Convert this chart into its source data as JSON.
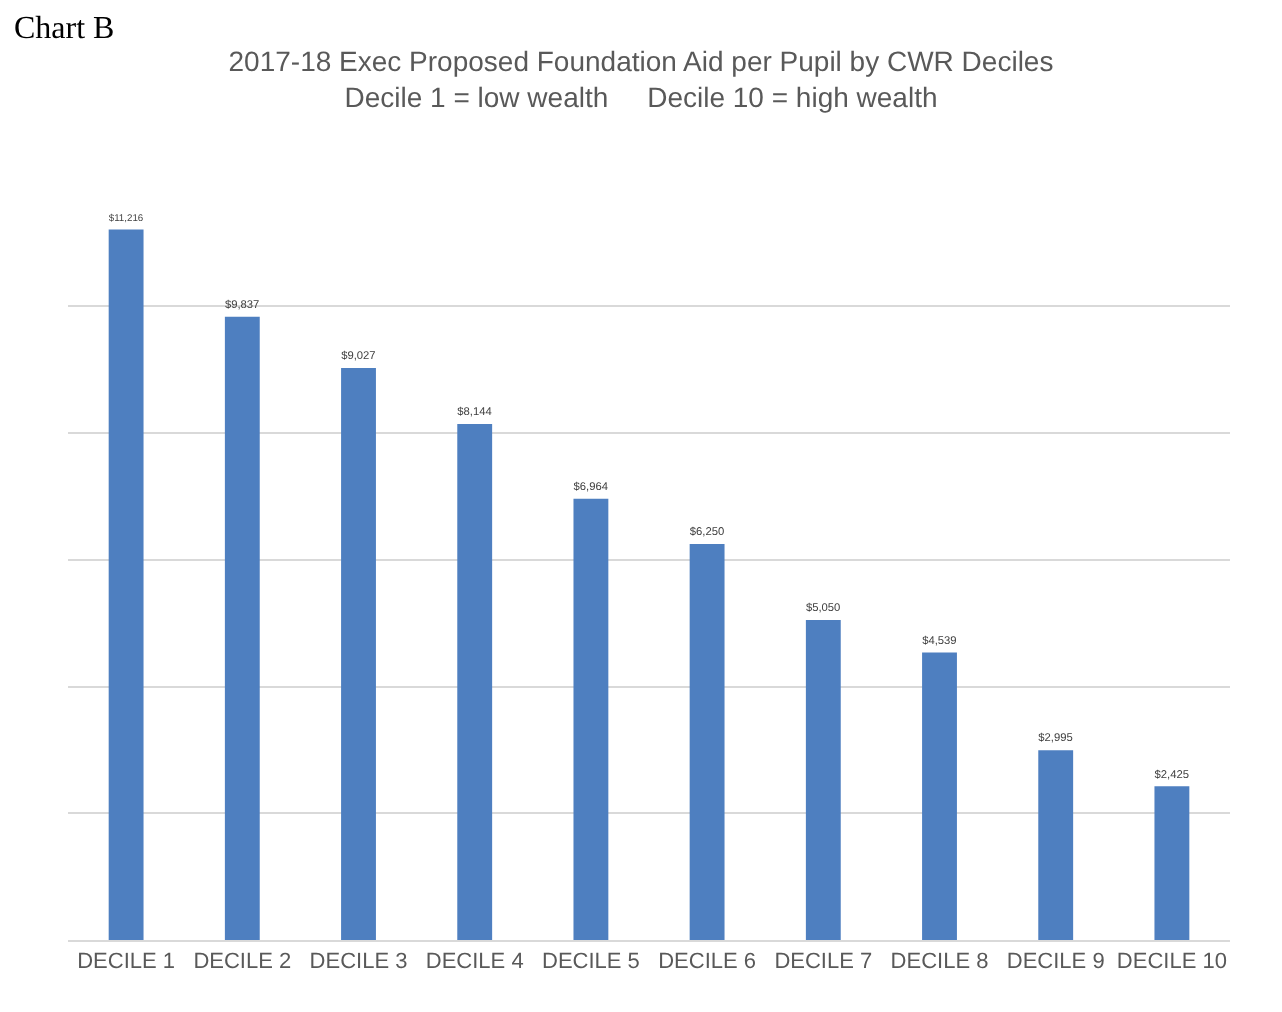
{
  "chart_data": {
    "type": "bar",
    "title": "2017-18 Exec Proposed Foundation Aid per Pupil by CWR Deciles",
    "subtitle": "Decile 1 = low wealth     Decile 10 = high wealth",
    "annotations": [
      "Chart B"
    ],
    "categories": [
      "DECILE 1",
      "DECILE 2",
      "DECILE 3",
      "DECILE 4",
      "DECILE 5",
      "DECILE 6",
      "DECILE 7",
      "DECILE 8",
      "DECILE 9",
      "DECILE 10"
    ],
    "values": [
      11216,
      9837,
      9027,
      8144,
      6964,
      6250,
      5050,
      4539,
      2995,
      2425
    ],
    "value_labels": [
      "$11,216",
      "$9,837",
      "$9,027",
      "$8,144",
      "$6,964",
      "$6,250",
      "$5,050",
      "$4,539",
      "$2,995",
      "$2,425"
    ],
    "color": "#4e7fc0",
    "grid": "y",
    "tick_labels": "x"
  }
}
